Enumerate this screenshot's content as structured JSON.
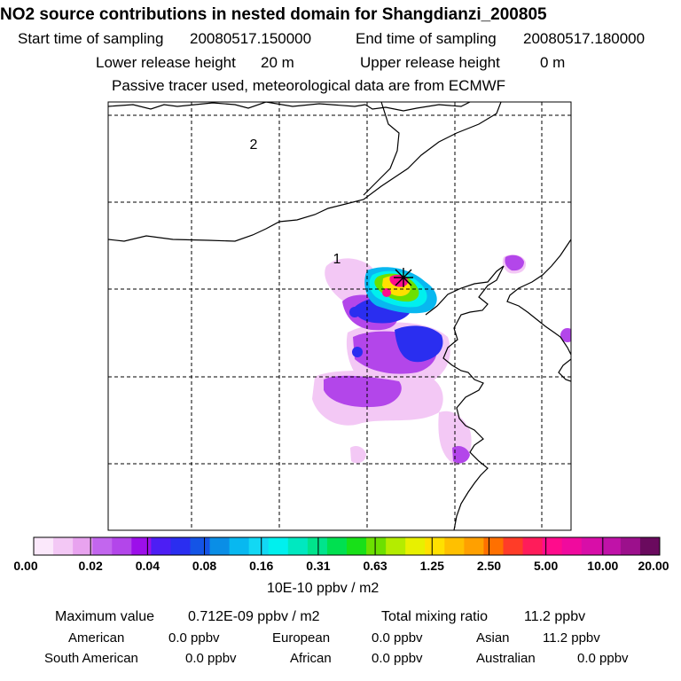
{
  "title": "NO2 source contributions in nested domain for Shangdianzi_200805",
  "header": {
    "start_label": "Start time of sampling",
    "start_value": "20080517.150000",
    "end_label": "End time of sampling",
    "end_value": "20080517.180000",
    "lower_label": "Lower release height",
    "lower_value": "20 m",
    "upper_label": "Upper release height",
    "upper_value": "0 m",
    "tracer_note": "Passive tracer used, meteorological data are from ECMWF"
  },
  "chart_data": {
    "type": "heatmap",
    "title": "NO2 source contributions in nested domain for Shangdianzi_200805",
    "colorbar_unit": "10E-10 ppbv / m2",
    "colorbar_ticks": [
      "0.00",
      "0.02",
      "0.04",
      "0.08",
      "0.16",
      "0.31",
      "0.63",
      "1.25",
      "2.50",
      "5.00",
      "10.00",
      "20.00"
    ],
    "colorbar_colors": [
      "#fbe8fb",
      "#f3c8f5",
      "#e8a3ef",
      "#c266ee",
      "#b346ea",
      "#9c0fea",
      "#4d1ef4",
      "#2a2ef0",
      "#1454e6",
      "#0a8ee6",
      "#08b8f0",
      "#12d8f4",
      "#00f0ee",
      "#00e8c0",
      "#00e48c",
      "#00e050",
      "#18e018",
      "#6ce000",
      "#b4ec00",
      "#e8f000",
      "#ffe000",
      "#ffc000",
      "#ffa000",
      "#ff7000",
      "#ff3c28",
      "#ff1c5a",
      "#ff0c8c",
      "#f00a9e",
      "#d80ea8",
      "#c012a8",
      "#9c108c",
      "#6a0a5e"
    ],
    "region_labels": [
      "1",
      "2"
    ],
    "receptor": "Shangdianzi",
    "plumes": [
      {
        "level": "0.01",
        "color": "#f3c8f5",
        "areas": 6
      },
      {
        "level": "0.04",
        "color": "#b346ea",
        "areas": 5
      },
      {
        "level": "0.10",
        "color": "#2a2ef0",
        "areas": 2
      },
      {
        "level": "0.20",
        "color": "#00f0ee",
        "areas": 1
      },
      {
        "level": "0.80",
        "color": "#6ce000",
        "areas": 1
      },
      {
        "level": "2.00",
        "color": "#ffe000",
        "areas": 1
      },
      {
        "level": "5.00",
        "color": "#ff0c8c",
        "areas": 2
      }
    ]
  },
  "footer": {
    "max_label": "Maximum value",
    "max_value": "0.712E-09 ppbv / m2",
    "total_label": "Total mixing ratio",
    "total_value": "11.2 ppbv",
    "regions": [
      {
        "name": "American",
        "value": "0.0 ppbv"
      },
      {
        "name": "European",
        "value": "0.0 ppbv"
      },
      {
        "name": "Asian",
        "value": "11.2 ppbv"
      },
      {
        "name": "South American",
        "value": "0.0 ppbv"
      },
      {
        "name": "African",
        "value": "0.0 ppbv"
      },
      {
        "name": "Australian",
        "value": "0.0 ppbv"
      }
    ]
  }
}
